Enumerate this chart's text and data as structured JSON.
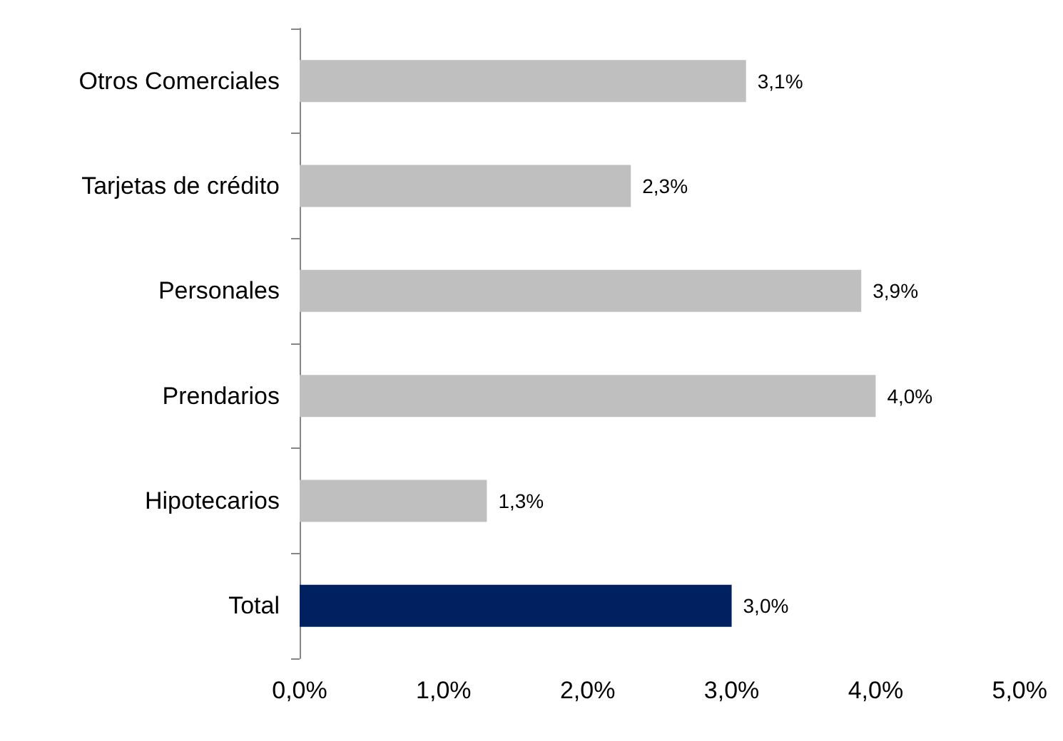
{
  "chart_data": {
    "type": "bar",
    "orientation": "horizontal",
    "categories": [
      "Otros Comerciales",
      "Tarjetas de crédito",
      "Personales",
      "Prendarios",
      "Hipotecarios",
      "Total"
    ],
    "values": [
      3.1,
      2.3,
      3.9,
      4.0,
      1.3,
      3.0
    ],
    "colors": [
      "#bfbfbf",
      "#bfbfbf",
      "#bfbfbf",
      "#bfbfbf",
      "#bfbfbf",
      "#002060"
    ],
    "value_labels": [
      "3,1%",
      "2,3%",
      "3,9%",
      "4,0%",
      "1,3%",
      "3,0%"
    ],
    "xlim": [
      0,
      5
    ],
    "xticks": [
      {
        "value": 0,
        "label": "0,0%"
      },
      {
        "value": 1,
        "label": "1,0%"
      },
      {
        "value": 2,
        "label": "2,0%"
      },
      {
        "value": 3,
        "label": "3,0%"
      },
      {
        "value": 4,
        "label": "4,0%"
      },
      {
        "value": 5,
        "label": "5,0%"
      }
    ],
    "grid": false
  }
}
